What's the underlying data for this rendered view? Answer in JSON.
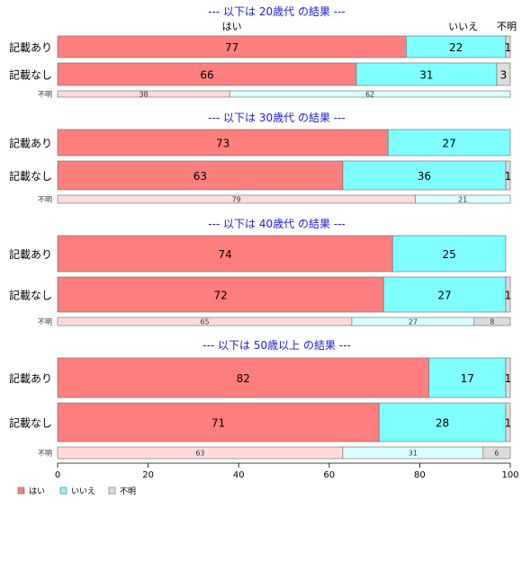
{
  "chart_data": {
    "type": "bar",
    "orientation": "horizontal",
    "stacked": true,
    "legend": {
      "placement": "bottom-left",
      "entries": [
        {
          "name": "はい",
          "color": "#ff7f7f"
        },
        {
          "name": "いいえ",
          "color": "#7fffff"
        },
        {
          "name": "不明",
          "color": "#dcdcdc"
        }
      ]
    },
    "category_headers": [
      "はい",
      "いいえ",
      "不明"
    ],
    "xlim": [
      0,
      100
    ],
    "xticks": [
      "0",
      "20",
      "40",
      "60",
      "80",
      "100"
    ],
    "grid": false,
    "colors": {
      "yes": "#ff7f7f",
      "no": "#7fffff",
      "unknown": "#dcdcdc",
      "yes_light": "#ffdbdb",
      "no_light": "#dbffff",
      "unknown_light": "#dcdcdc",
      "title": "#1a1adb"
    },
    "panels": [
      {
        "title": "--- 以下は 20歳代 の結果 ---",
        "rows": [
          {
            "label": "記載あり",
            "values": [
              77,
              22,
              1
            ],
            "labels": [
              "77",
              "22",
              "1"
            ]
          },
          {
            "label": "記載なし",
            "values": [
              66,
              31,
              3
            ],
            "labels": [
              "66",
              "31",
              "3"
            ]
          },
          {
            "label": "不明",
            "values": [
              38,
              62,
              0
            ],
            "labels": [
              "38",
              "62",
              ""
            ],
            "small": true
          }
        ]
      },
      {
        "title": "--- 以下は 30歳代 の結果 ---",
        "rows": [
          {
            "label": "記載あり",
            "values": [
              73,
              27,
              0
            ],
            "labels": [
              "73",
              "27",
              ""
            ]
          },
          {
            "label": "記載なし",
            "values": [
              63,
              36,
              1
            ],
            "labels": [
              "63",
              "36",
              "1"
            ]
          },
          {
            "label": "不明",
            "values": [
              79,
              21,
              0
            ],
            "labels": [
              "79",
              "21",
              ""
            ],
            "small": true
          }
        ]
      },
      {
        "title": "--- 以下は 40歳代 の結果 ---",
        "rows": [
          {
            "label": "記載あり",
            "values": [
              74,
              25,
              0
            ],
            "labels": [
              "74",
              "25",
              ""
            ]
          },
          {
            "label": "記載なし",
            "values": [
              72,
              27,
              1
            ],
            "labels": [
              "72",
              "27",
              "1"
            ]
          },
          {
            "label": "不明",
            "values": [
              65,
              27,
              8
            ],
            "labels": [
              "65",
              "27",
              "8"
            ],
            "small": true
          }
        ]
      },
      {
        "title": "--- 以下は 50歳以上 の結果 ---",
        "rows": [
          {
            "label": "記載あり",
            "values": [
              82,
              17,
              1
            ],
            "labels": [
              "82",
              "17",
              "1"
            ]
          },
          {
            "label": "記載なし",
            "values": [
              71,
              28,
              1
            ],
            "labels": [
              "71",
              "28",
              "1"
            ]
          },
          {
            "label": "不明",
            "values": [
              63,
              31,
              6
            ],
            "labels": [
              "63",
              "31",
              "6"
            ],
            "small": true
          }
        ]
      }
    ]
  }
}
